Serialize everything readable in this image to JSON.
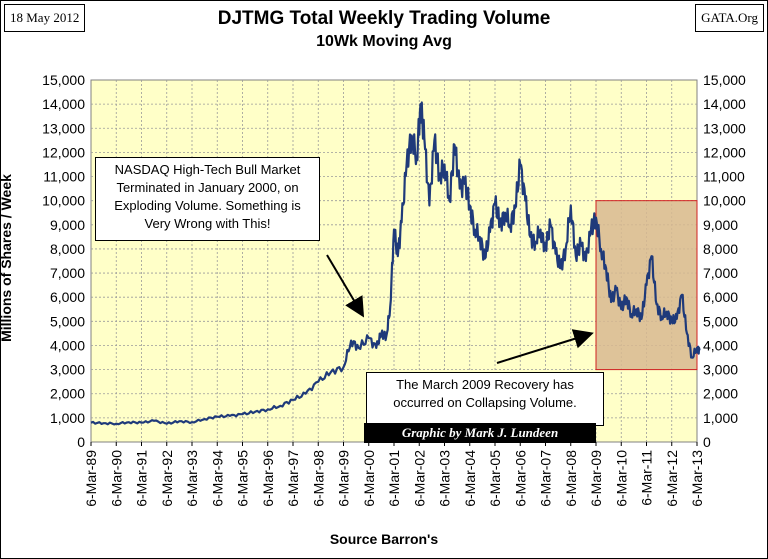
{
  "header": {
    "date": "18 May 2012",
    "source_site": "GATA.Org"
  },
  "chart_data": {
    "type": "line",
    "title": "DJTMG Total Weekly Trading Volume",
    "subtitle": "10Wk Moving Avg",
    "ylabel": "Millions of Shares / Week",
    "xlabel": "Source Barron's",
    "ylim": [
      0,
      15000
    ],
    "y_ticks": [
      "0",
      "1,000",
      "2,000",
      "3,000",
      "4,000",
      "5,000",
      "6,000",
      "7,000",
      "8,000",
      "9,000",
      "10,000",
      "11,000",
      "12,000",
      "13,000",
      "14,000",
      "15,000"
    ],
    "x_ticks": [
      "6-Mar-89",
      "6-Mar-90",
      "6-Mar-91",
      "6-Mar-92",
      "6-Mar-93",
      "6-Mar-94",
      "6-Mar-95",
      "6-Mar-96",
      "6-Mar-97",
      "6-Mar-98",
      "6-Mar-99",
      "6-Mar-00",
      "6-Mar-01",
      "6-Mar-02",
      "6-Mar-03",
      "6-Mar-04",
      "6-Mar-05",
      "6-Mar-06",
      "6-Mar-07",
      "6-Mar-08",
      "6-Mar-09",
      "6-Mar-10",
      "6-Mar-11",
      "6-Mar-12",
      "6-Mar-13"
    ],
    "x_start_year": 1989,
    "grid": true,
    "series": [
      {
        "name": "DJTMG 10Wk Moving Avg",
        "color": "#1F3A7A",
        "points": [
          [
            0.0,
            800
          ],
          [
            0.5,
            780
          ],
          [
            1.0,
            760
          ],
          [
            1.5,
            820
          ],
          [
            2.0,
            800
          ],
          [
            2.5,
            880
          ],
          [
            3.0,
            760
          ],
          [
            3.5,
            860
          ],
          [
            4.0,
            820
          ],
          [
            4.5,
            950
          ],
          [
            5.0,
            1050
          ],
          [
            5.5,
            1080
          ],
          [
            6.0,
            1150
          ],
          [
            6.5,
            1250
          ],
          [
            7.0,
            1350
          ],
          [
            7.5,
            1500
          ],
          [
            8.0,
            1750
          ],
          [
            8.5,
            2000
          ],
          [
            9.0,
            2500
          ],
          [
            9.5,
            2900
          ],
          [
            10.0,
            3100
          ],
          [
            10.3,
            4200
          ],
          [
            10.6,
            3900
          ],
          [
            11.0,
            4300
          ],
          [
            11.3,
            3900
          ],
          [
            11.5,
            4500
          ],
          [
            11.7,
            4400
          ],
          [
            11.85,
            5600
          ],
          [
            12.0,
            8800
          ],
          [
            12.15,
            7700
          ],
          [
            12.3,
            9100
          ],
          [
            12.5,
            11500
          ],
          [
            12.7,
            12700
          ],
          [
            12.9,
            11800
          ],
          [
            13.05,
            14000
          ],
          [
            13.2,
            12600
          ],
          [
            13.4,
            9800
          ],
          [
            13.6,
            12500
          ],
          [
            13.8,
            11000
          ],
          [
            14.0,
            11500
          ],
          [
            14.2,
            10000
          ],
          [
            14.4,
            12300
          ],
          [
            14.6,
            10500
          ],
          [
            14.8,
            10700
          ],
          [
            15.0,
            9800
          ],
          [
            15.2,
            8800
          ],
          [
            15.4,
            8500
          ],
          [
            15.6,
            7600
          ],
          [
            15.8,
            8700
          ],
          [
            16.0,
            9900
          ],
          [
            16.2,
            9000
          ],
          [
            16.4,
            9500
          ],
          [
            16.6,
            9000
          ],
          [
            16.8,
            9700
          ],
          [
            17.0,
            11500
          ],
          [
            17.2,
            10000
          ],
          [
            17.4,
            8500
          ],
          [
            17.6,
            8300
          ],
          [
            17.8,
            8800
          ],
          [
            18.0,
            8000
          ],
          [
            18.2,
            9000
          ],
          [
            18.4,
            7800
          ],
          [
            18.6,
            7200
          ],
          [
            18.8,
            8000
          ],
          [
            19.0,
            9800
          ],
          [
            19.2,
            7700
          ],
          [
            19.4,
            8200
          ],
          [
            19.6,
            7500
          ],
          [
            19.8,
            8800
          ],
          [
            20.0,
            9300
          ],
          [
            20.2,
            8000
          ],
          [
            20.4,
            7200
          ],
          [
            20.6,
            5800
          ],
          [
            20.8,
            6300
          ],
          [
            21.0,
            5500
          ],
          [
            21.2,
            6000
          ],
          [
            21.4,
            5300
          ],
          [
            21.6,
            5500
          ],
          [
            21.8,
            5100
          ],
          [
            22.0,
            6500
          ],
          [
            22.2,
            7700
          ],
          [
            22.4,
            5700
          ],
          [
            22.6,
            5200
          ],
          [
            22.8,
            5400
          ],
          [
            23.0,
            5000
          ],
          [
            23.2,
            5100
          ],
          [
            23.4,
            6100
          ],
          [
            23.6,
            4500
          ],
          [
            23.8,
            3500
          ],
          [
            24.0,
            3900
          ],
          [
            24.1,
            3800
          ]
        ]
      }
    ],
    "highlight_region": {
      "x_from_year_offset": 20.0,
      "x_to_year_offset": 24.0,
      "y_from": 3000,
      "y_to": 10000
    },
    "annotations": {
      "nasdaq": "NASDAQ High-Tech Bull Market\nTerminated in January 2000, on\nExploding Volume.  Something is\nVery Wrong with This!",
      "recovery": "The March 2009 Recovery has\noccurred on Collapsing Volume.",
      "credit": "Graphic by Mark J. Lundeen"
    }
  },
  "colors": {
    "plot_background": "#FFFFC8",
    "line": "#1F3A7A",
    "highlight_fill": "#D8B890",
    "highlight_border": "#D02020"
  }
}
